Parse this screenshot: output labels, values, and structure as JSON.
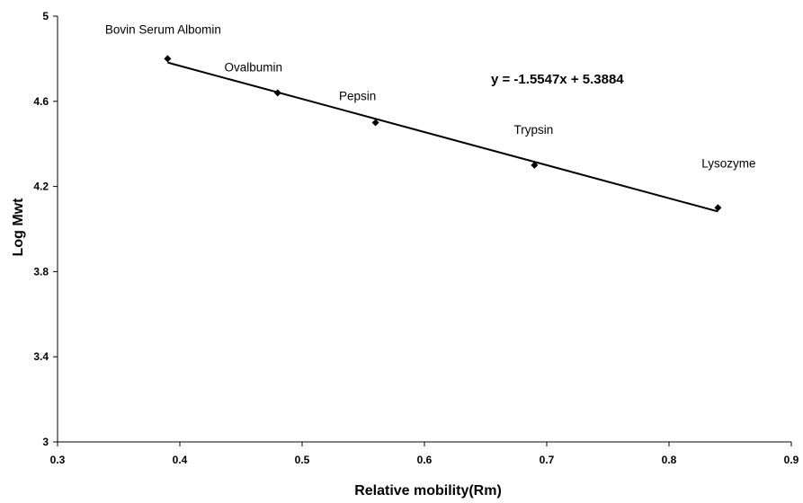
{
  "chart_data": {
    "type": "scatter",
    "xlabel": "Relative mobility(Rm)",
    "ylabel": "Log Mwt",
    "xlim": [
      0.3,
      0.9
    ],
    "ylim": [
      3,
      5
    ],
    "xticks": [
      0.3,
      0.4,
      0.5,
      0.6,
      0.7,
      0.8,
      0.9
    ],
    "yticks": [
      3,
      3.4,
      3.8,
      4.2,
      4.6,
      5
    ],
    "xtick_labels": [
      "0.3",
      "0.4",
      "0.5",
      "0.6",
      "0.7",
      "0.8",
      "0.9"
    ],
    "ytick_labels": [
      "3",
      "3.4",
      "3.8",
      "4.2",
      "4.6",
      "5"
    ],
    "grid": false,
    "points": [
      {
        "label": "Bovin Serum Albomin",
        "x": 0.39,
        "y": 4.8
      },
      {
        "label": "Ovalbumin",
        "x": 0.48,
        "y": 4.64
      },
      {
        "label": "Pepsin",
        "x": 0.56,
        "y": 4.5
      },
      {
        "label": "Trypsin",
        "x": 0.69,
        "y": 4.3
      },
      {
        "label": "Lysozyme",
        "x": 0.84,
        "y": 4.1
      }
    ],
    "trendline": {
      "type": "linear",
      "slope": -1.5547,
      "intercept": 5.3884,
      "x_range": [
        0.39,
        0.84
      ],
      "equation": "y = -1.5547x + 5.3884"
    },
    "colors": {
      "marker": "#000000",
      "line": "#000000",
      "axis": "#000000"
    }
  }
}
